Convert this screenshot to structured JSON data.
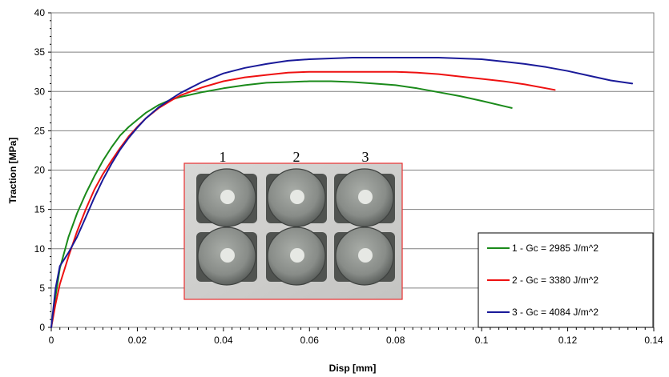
{
  "chart_data": {
    "type": "line",
    "xlabel": "Disp [mm]",
    "ylabel": "Traction [MPa]",
    "xlim": [
      0,
      0.14
    ],
    "ylim": [
      0,
      40
    ],
    "xticks": [
      0,
      0.02,
      0.04,
      0.06,
      0.08,
      0.1,
      0.12,
      0.14
    ],
    "xtick_labels": [
      "0",
      "0.02",
      "0.04",
      "0.06",
      "0.08",
      "0.1",
      "0.12",
      "0.14"
    ],
    "yticks": [
      0,
      5,
      10,
      15,
      20,
      25,
      30,
      35,
      40
    ],
    "ytick_labels": [
      "0",
      "5",
      "10",
      "15",
      "20",
      "25",
      "30",
      "35",
      "40"
    ],
    "grid": "horizontal",
    "legend_position": "bottom-right",
    "series": [
      {
        "name": "1 - Gc = 2985 J/m^2",
        "color": "#1a8a1a",
        "x": [
          0,
          0.001,
          0.002,
          0.004,
          0.006,
          0.008,
          0.01,
          0.012,
          0.014,
          0.016,
          0.018,
          0.02,
          0.022,
          0.025,
          0.028,
          0.03,
          0.035,
          0.04,
          0.045,
          0.05,
          0.055,
          0.06,
          0.065,
          0.07,
          0.075,
          0.08,
          0.085,
          0.09,
          0.095,
          0.1,
          0.107
        ],
        "y": [
          0,
          4,
          7.5,
          11.5,
          14.5,
          17,
          19.2,
          21.2,
          22.9,
          24.4,
          25.5,
          26.4,
          27.3,
          28.3,
          29,
          29.3,
          29.9,
          30.4,
          30.8,
          31.1,
          31.2,
          31.3,
          31.3,
          31.2,
          31,
          30.8,
          30.4,
          29.9,
          29.4,
          28.8,
          27.9
        ]
      },
      {
        "name": "2 - Gc = 3380 J/m^2",
        "color": "#ee1111",
        "x": [
          0,
          0.001,
          0.002,
          0.004,
          0.006,
          0.008,
          0.01,
          0.012,
          0.014,
          0.016,
          0.018,
          0.02,
          0.022,
          0.025,
          0.028,
          0.03,
          0.035,
          0.04,
          0.045,
          0.05,
          0.055,
          0.06,
          0.065,
          0.07,
          0.075,
          0.08,
          0.085,
          0.09,
          0.095,
          0.1,
          0.105,
          0.11,
          0.117
        ],
        "y": [
          0,
          3,
          5.5,
          9,
          12.2,
          15,
          17.5,
          19.5,
          21.2,
          22.8,
          24.3,
          25.5,
          26.6,
          27.9,
          28.9,
          29.5,
          30.5,
          31.3,
          31.8,
          32.1,
          32.4,
          32.5,
          32.5,
          32.5,
          32.5,
          32.5,
          32.4,
          32.2,
          31.9,
          31.6,
          31.3,
          30.9,
          30.2
        ]
      },
      {
        "name": "3 - Gc = 4084 J/m^2",
        "color": "#1a1a99",
        "x": [
          0,
          0.001,
          0.002,
          0.004,
          0.006,
          0.008,
          0.01,
          0.012,
          0.014,
          0.016,
          0.018,
          0.02,
          0.022,
          0.025,
          0.028,
          0.03,
          0.035,
          0.04,
          0.045,
          0.05,
          0.055,
          0.06,
          0.065,
          0.07,
          0.075,
          0.08,
          0.085,
          0.09,
          0.095,
          0.1,
          0.105,
          0.11,
          0.115,
          0.12,
          0.125,
          0.13,
          0.135
        ],
        "y": [
          0,
          5,
          7.8,
          9.5,
          11.5,
          14,
          16.5,
          18.8,
          20.8,
          22.6,
          24.1,
          25.4,
          26.6,
          28,
          29.1,
          29.8,
          31.2,
          32.3,
          33,
          33.5,
          33.9,
          34.1,
          34.2,
          34.3,
          34.3,
          34.3,
          34.3,
          34.3,
          34.2,
          34.1,
          33.8,
          33.5,
          33.1,
          32.6,
          32,
          31.4,
          31
        ]
      }
    ],
    "inset": {
      "labels": [
        "1",
        "2",
        "3"
      ],
      "frame_color": "#e83030"
    }
  }
}
